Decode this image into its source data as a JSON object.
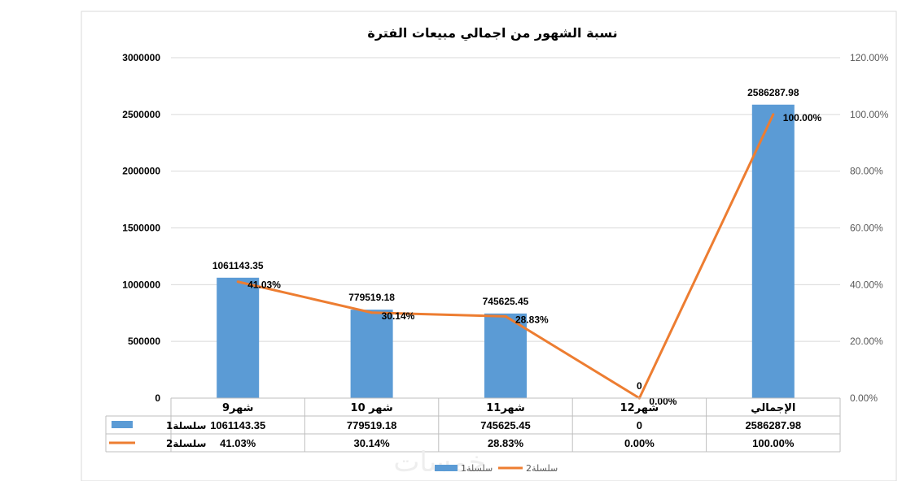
{
  "chart_data": {
    "type": "bar",
    "title": "نسبة الشهور من اجمالي مبيعات الفترة",
    "categories": [
      "شهر9",
      "شهر 10",
      "شهر11",
      "شهر12",
      "الإجمالي"
    ],
    "series": [
      {
        "name": "سلسلة1",
        "type": "bar",
        "axis": "left",
        "color": "#5b9bd5",
        "values": [
          1061143.35,
          779519.18,
          745625.45,
          0,
          2586287.98
        ],
        "labels": [
          "1061143.35",
          "779519.18",
          "745625.45",
          "0",
          "2586287.98"
        ]
      },
      {
        "name": "سلسلة2",
        "type": "line",
        "axis": "right",
        "color": "#ed7d31",
        "values": [
          41.03,
          30.14,
          28.83,
          0.0,
          100.0
        ],
        "labels": [
          "41.03%",
          "30.14%",
          "28.83%",
          "0.00%",
          "100.00%"
        ]
      }
    ],
    "y_left": {
      "min": 0,
      "max": 3000000,
      "ticks": [
        "0",
        "500000",
        "1000000",
        "1500000",
        "2000000",
        "2500000",
        "3000000"
      ]
    },
    "y_right": {
      "min": 0,
      "max": 120,
      "ticks": [
        "0.00%",
        "20.00%",
        "40.00%",
        "60.00%",
        "80.00%",
        "100.00%",
        "120.00%"
      ]
    },
    "grid": true,
    "data_table": true,
    "legend": {
      "position": "bottom",
      "entries": [
        "سلسلة1",
        "سلسلة2"
      ]
    }
  },
  "watermark": "خمسات"
}
